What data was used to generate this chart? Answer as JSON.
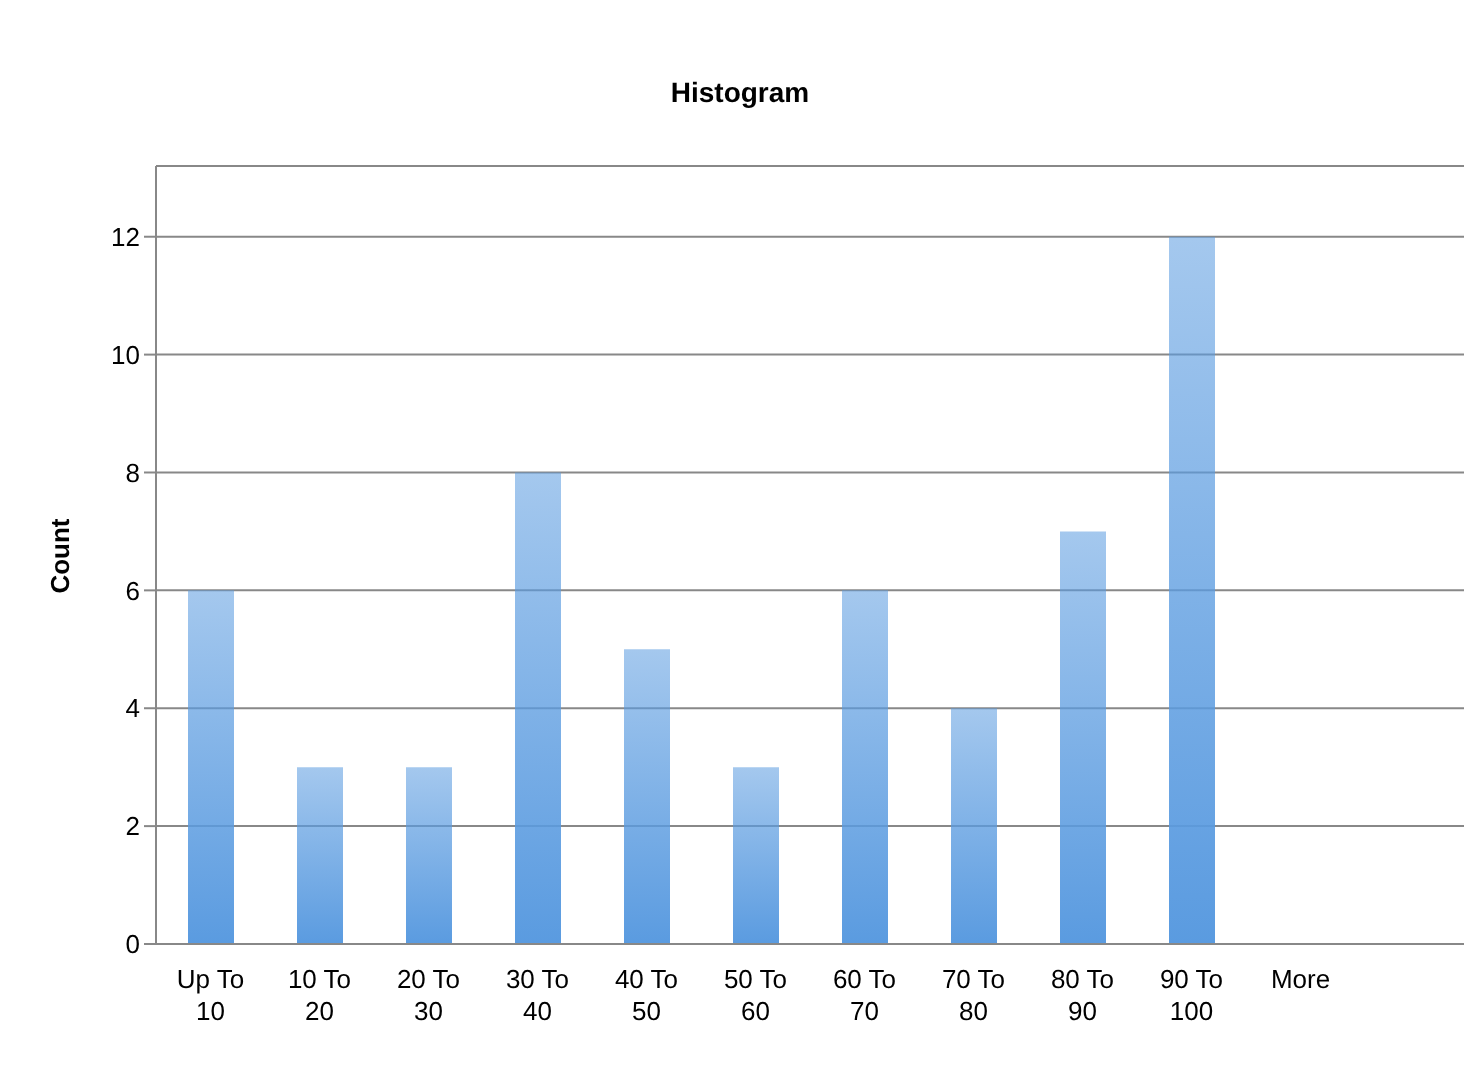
{
  "chart_data": {
    "type": "bar",
    "title": "Histogram",
    "ylabel": "Count",
    "categories": [
      "Up To 10",
      "10 To 20",
      "20 To 30",
      "30 To 40",
      "40 To 50",
      "50 To 60",
      "60 To 70",
      "70 To 80",
      "80 To 90",
      "90 To 100",
      "More",
      null
    ],
    "values": [
      6,
      3,
      3,
      8,
      5,
      3,
      6,
      4,
      7,
      12,
      0,
      null
    ],
    "color": "#5a9be0",
    "ylim": [
      0,
      13.2
    ],
    "yticks": [
      0,
      2,
      4,
      6,
      8,
      10,
      12
    ],
    "grid": "y"
  }
}
